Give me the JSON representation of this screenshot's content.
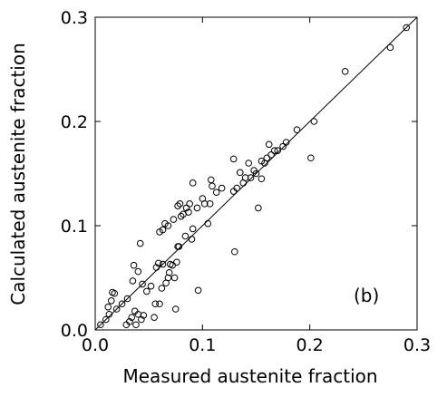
{
  "chart_data": {
    "type": "scatter",
    "xlabel": "Measured austenite fraction",
    "ylabel": "Calculated austenite fraction",
    "panel_label": "(b)",
    "xlim": [
      0.0,
      0.3
    ],
    "ylim": [
      0.0,
      0.3
    ],
    "x_ticks": [
      0.0,
      0.1,
      0.2,
      0.3
    ],
    "y_ticks": [
      0.0,
      0.1,
      0.2,
      0.3
    ],
    "x_tick_labels": [
      "0.0",
      "0.1",
      "0.2",
      "0.3"
    ],
    "y_tick_labels": [
      "0.0",
      "0.1",
      "0.2",
      "0.3"
    ],
    "grid": false,
    "reference_line": {
      "x": [
        0.0,
        0.3
      ],
      "y": [
        0.0,
        0.3
      ]
    },
    "points": [
      [
        0.005,
        0.005
      ],
      [
        0.01,
        0.01
      ],
      [
        0.013,
        0.015
      ],
      [
        0.012,
        0.022
      ],
      [
        0.015,
        0.028
      ],
      [
        0.016,
        0.036
      ],
      [
        0.018,
        0.035
      ],
      [
        0.02,
        0.02
      ],
      [
        0.025,
        0.025
      ],
      [
        0.03,
        0.03
      ],
      [
        0.029,
        0.005
      ],
      [
        0.032,
        0.008
      ],
      [
        0.034,
        0.012
      ],
      [
        0.035,
        0.047
      ],
      [
        0.036,
        0.062
      ],
      [
        0.037,
        0.018
      ],
      [
        0.038,
        0.005
      ],
      [
        0.04,
        0.015
      ],
      [
        0.04,
        0.056
      ],
      [
        0.042,
        0.083
      ],
      [
        0.043,
        0.01
      ],
      [
        0.044,
        0.044
      ],
      [
        0.045,
        0.014
      ],
      [
        0.048,
        0.037
      ],
      [
        0.052,
        0.042
      ],
      [
        0.055,
        0.012
      ],
      [
        0.056,
        0.025
      ],
      [
        0.057,
        0.06
      ],
      [
        0.059,
        0.064
      ],
      [
        0.06,
        0.025
      ],
      [
        0.06,
        0.094
      ],
      [
        0.062,
        0.04
      ],
      [
        0.063,
        0.096
      ],
      [
        0.063,
        0.063
      ],
      [
        0.065,
        0.102
      ],
      [
        0.066,
        0.045
      ],
      [
        0.068,
        0.05
      ],
      [
        0.068,
        0.1
      ],
      [
        0.069,
        0.055
      ],
      [
        0.07,
        0.063
      ],
      [
        0.072,
        0.062
      ],
      [
        0.073,
        0.106
      ],
      [
        0.074,
        0.05
      ],
      [
        0.075,
        0.02
      ],
      [
        0.076,
        0.065
      ],
      [
        0.077,
        0.119
      ],
      [
        0.077,
        0.08
      ],
      [
        0.078,
        0.08
      ],
      [
        0.079,
        0.121
      ],
      [
        0.08,
        0.109
      ],
      [
        0.082,
        0.111
      ],
      [
        0.084,
        0.09
      ],
      [
        0.085,
        0.117
      ],
      [
        0.087,
        0.113
      ],
      [
        0.088,
        0.121
      ],
      [
        0.09,
        0.087
      ],
      [
        0.091,
        0.097
      ],
      [
        0.091,
        0.141
      ],
      [
        0.095,
        0.117
      ],
      [
        0.096,
        0.038
      ],
      [
        0.1,
        0.126
      ],
      [
        0.102,
        0.121
      ],
      [
        0.105,
        0.102
      ],
      [
        0.107,
        0.121
      ],
      [
        0.108,
        0.144
      ],
      [
        0.109,
        0.138
      ],
      [
        0.113,
        0.132
      ],
      [
        0.118,
        0.136
      ],
      [
        0.129,
        0.164
      ],
      [
        0.129,
        0.133
      ],
      [
        0.13,
        0.075
      ],
      [
        0.132,
        0.136
      ],
      [
        0.135,
        0.151
      ],
      [
        0.138,
        0.141
      ],
      [
        0.14,
        0.146
      ],
      [
        0.143,
        0.16
      ],
      [
        0.145,
        0.146
      ],
      [
        0.148,
        0.153
      ],
      [
        0.15,
        0.15
      ],
      [
        0.152,
        0.117
      ],
      [
        0.155,
        0.162
      ],
      [
        0.155,
        0.145
      ],
      [
        0.158,
        0.16
      ],
      [
        0.16,
        0.165
      ],
      [
        0.162,
        0.178
      ],
      [
        0.164,
        0.168
      ],
      [
        0.167,
        0.172
      ],
      [
        0.17,
        0.172
      ],
      [
        0.175,
        0.176
      ],
      [
        0.178,
        0.18
      ],
      [
        0.188,
        0.192
      ],
      [
        0.201,
        0.165
      ],
      [
        0.204,
        0.2
      ],
      [
        0.233,
        0.248
      ],
      [
        0.275,
        0.271
      ],
      [
        0.29,
        0.29
      ]
    ]
  }
}
